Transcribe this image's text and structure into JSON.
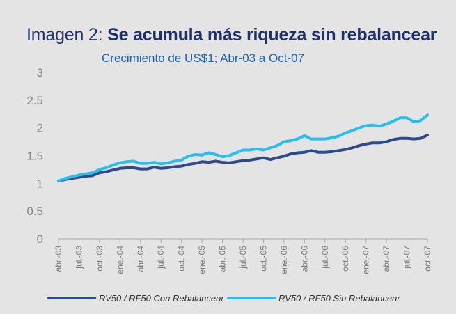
{
  "chart_data": {
    "type": "line",
    "title_prefix": "Imagen 2:",
    "title": "Se acumula más riqueza sin rebalancear",
    "subtitle": "Crecimiento de US$1; Abr-03 a Oct-07",
    "xlabel": "",
    "ylabel": "",
    "ylim": [
      0,
      3
    ],
    "yticks": [
      "0",
      "0.5",
      "1",
      "1.5",
      "2",
      "2.5",
      "3"
    ],
    "x": [
      "abr.-03",
      "may.-03",
      "jun.-03",
      "jul.-03",
      "ago.-03",
      "sep.-03",
      "oct.-03",
      "nov.-03",
      "dic.-03",
      "ene.-04",
      "feb.-04",
      "mar.-04",
      "abr.-04",
      "may.-04",
      "jun.-04",
      "jul.-04",
      "ago.-04",
      "sep.-04",
      "oct.-04",
      "nov.-04",
      "dic.-04",
      "ene.-05",
      "feb.-05",
      "mar.-05",
      "abr.-05",
      "may.-05",
      "jun.-05",
      "jul.-05",
      "ago.-05",
      "sep.-05",
      "oct.-05",
      "nov.-05",
      "dic.-05",
      "ene.-06",
      "feb.-06",
      "mar.-06",
      "abr.-06",
      "may.-06",
      "jun.-06",
      "jul.-06",
      "ago.-06",
      "sep.-06",
      "oct.-06",
      "nov.-06",
      "dic.-06",
      "ene.-07",
      "feb.-07",
      "mar.-07",
      "abr.-07",
      "may.-07",
      "jun.-07",
      "jul.-07",
      "ago.-07",
      "sep.-07",
      "oct.-07"
    ],
    "xtick_labels": [
      "abr.-03",
      "jul.-03",
      "oct.-03",
      "ene.-04",
      "abr.-04",
      "jul.-04",
      "oct.-04",
      "ene.-05",
      "abr.-05",
      "jul.-05",
      "oct.-05",
      "ene.-06",
      "abr.-06",
      "jul.-06",
      "oct.-06",
      "ene.-07",
      "abr.-07",
      "jul.-07",
      "oct.-07"
    ],
    "grid": false,
    "legend_position": "bottom",
    "series": [
      {
        "name": "RV50 / RF50 Con Rebalancear",
        "color": "#2e4a8c",
        "values": [
          1.04,
          1.07,
          1.09,
          1.11,
          1.13,
          1.14,
          1.19,
          1.21,
          1.24,
          1.27,
          1.28,
          1.28,
          1.26,
          1.26,
          1.29,
          1.27,
          1.28,
          1.3,
          1.31,
          1.34,
          1.36,
          1.39,
          1.38,
          1.4,
          1.38,
          1.37,
          1.39,
          1.41,
          1.42,
          1.44,
          1.46,
          1.43,
          1.46,
          1.49,
          1.53,
          1.55,
          1.56,
          1.59,
          1.56,
          1.56,
          1.57,
          1.59,
          1.61,
          1.64,
          1.68,
          1.71,
          1.73,
          1.73,
          1.75,
          1.79,
          1.81,
          1.81,
          1.8,
          1.81,
          1.87
        ]
      },
      {
        "name": "RV50 / RF50 Sin Rebalancear",
        "color": "#29bdf0",
        "values": [
          1.04,
          1.09,
          1.12,
          1.15,
          1.17,
          1.19,
          1.25,
          1.28,
          1.33,
          1.37,
          1.39,
          1.4,
          1.36,
          1.36,
          1.38,
          1.35,
          1.37,
          1.4,
          1.42,
          1.49,
          1.52,
          1.51,
          1.55,
          1.52,
          1.48,
          1.5,
          1.55,
          1.6,
          1.6,
          1.62,
          1.6,
          1.64,
          1.68,
          1.75,
          1.77,
          1.8,
          1.86,
          1.8,
          1.8,
          1.8,
          1.82,
          1.85,
          1.91,
          1.95,
          2.0,
          2.04,
          2.05,
          2.03,
          2.07,
          2.12,
          2.18,
          2.18,
          2.11,
          2.13,
          2.23
        ]
      }
    ]
  }
}
